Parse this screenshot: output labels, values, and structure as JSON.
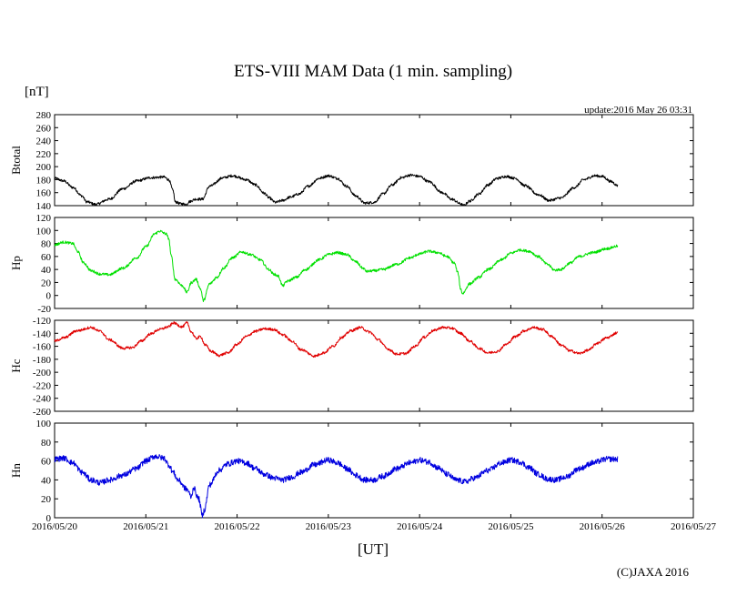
{
  "chart_data": {
    "type": "line",
    "title": "ETS-VIII MAM Data (1 min. sampling)",
    "unit_label": "[nT]",
    "update_text": "update:2016 May 26 03:31",
    "xlabel": "[UT]",
    "copyright": "(C)JAXA 2016",
    "x_axis": {
      "range": [
        0,
        7
      ],
      "ticks": [
        0,
        1,
        2,
        3,
        4,
        5,
        6,
        7
      ],
      "tick_labels": [
        "2016/05/20",
        "2016/05/21",
        "2016/05/22",
        "2016/05/23",
        "2016/05/24",
        "2016/05/25",
        "2016/05/26",
        "2016/05/27"
      ],
      "unit": "days since 2016/05/20 00:00 UT"
    },
    "panels": [
      {
        "id": "btotal",
        "ylabel": "Btotal",
        "color": "#000000",
        "ylim": [
          140,
          280
        ],
        "yticks": [
          140,
          160,
          180,
          200,
          220,
          240,
          260,
          280
        ],
        "ytick_labels": [
          "140",
          "160",
          "180",
          "200",
          "220",
          "240",
          "260",
          "280"
        ],
        "noise": 2,
        "points": [
          [
            0,
            182
          ],
          [
            0.1,
            178
          ],
          [
            0.2,
            168
          ],
          [
            0.3,
            155
          ],
          [
            0.35,
            146
          ],
          [
            0.45,
            142
          ],
          [
            0.6,
            150
          ],
          [
            0.75,
            166
          ],
          [
            0.9,
            178
          ],
          [
            1.05,
            183
          ],
          [
            1.2,
            184
          ],
          [
            1.25,
            180
          ],
          [
            1.3,
            163
          ],
          [
            1.32,
            146
          ],
          [
            1.38,
            143
          ],
          [
            1.45,
            142
          ],
          [
            1.47,
            146
          ],
          [
            1.55,
            150
          ],
          [
            1.62,
            150
          ],
          [
            1.7,
            170
          ],
          [
            1.85,
            183
          ],
          [
            1.95,
            186
          ],
          [
            2.1,
            180
          ],
          [
            2.2,
            172
          ],
          [
            2.3,
            159
          ],
          [
            2.35,
            152
          ],
          [
            2.42,
            145
          ],
          [
            2.5,
            148
          ],
          [
            2.58,
            153
          ],
          [
            2.68,
            158
          ],
          [
            2.78,
            170
          ],
          [
            2.9,
            182
          ],
          [
            3.0,
            186
          ],
          [
            3.1,
            182
          ],
          [
            3.2,
            170
          ],
          [
            3.3,
            155
          ],
          [
            3.4,
            144
          ],
          [
            3.5,
            145
          ],
          [
            3.6,
            158
          ],
          [
            3.7,
            172
          ],
          [
            3.8,
            183
          ],
          [
            3.9,
            187
          ],
          [
            4.0,
            185
          ],
          [
            4.1,
            177
          ],
          [
            4.25,
            160
          ],
          [
            4.35,
            150
          ],
          [
            4.45,
            143
          ],
          [
            4.48,
            140
          ],
          [
            4.55,
            147
          ],
          [
            4.65,
            158
          ],
          [
            4.75,
            172
          ],
          [
            4.85,
            182
          ],
          [
            4.95,
            185
          ],
          [
            5.05,
            182
          ],
          [
            5.15,
            171
          ],
          [
            5.3,
            157
          ],
          [
            5.42,
            148
          ],
          [
            5.55,
            152
          ],
          [
            5.7,
            168
          ],
          [
            5.8,
            180
          ],
          [
            5.92,
            186
          ],
          [
            6.0,
            185
          ],
          [
            6.1,
            177
          ],
          [
            6.17,
            171
          ]
        ]
      },
      {
        "id": "hp",
        "ylabel": "Hp",
        "color": "#00e000",
        "ylim": [
          -20,
          120
        ],
        "yticks": [
          -20,
          0,
          20,
          40,
          60,
          80,
          100,
          120
        ],
        "ytick_labels": [
          "-20",
          "0",
          "20",
          "40",
          "60",
          "80",
          "100",
          "120"
        ],
        "noise": 2,
        "points": [
          [
            0,
            78
          ],
          [
            0.1,
            82
          ],
          [
            0.2,
            80
          ],
          [
            0.25,
            68
          ],
          [
            0.32,
            50
          ],
          [
            0.4,
            38
          ],
          [
            0.5,
            33
          ],
          [
            0.6,
            32
          ],
          [
            0.75,
            42
          ],
          [
            0.9,
            58
          ],
          [
            1.0,
            75
          ],
          [
            1.1,
            95
          ],
          [
            1.15,
            99
          ],
          [
            1.22,
            95
          ],
          [
            1.25,
            88
          ],
          [
            1.28,
            60
          ],
          [
            1.32,
            25
          ],
          [
            1.4,
            15
          ],
          [
            1.45,
            5
          ],
          [
            1.5,
            20
          ],
          [
            1.55,
            25
          ],
          [
            1.6,
            10
          ],
          [
            1.63,
            -8
          ],
          [
            1.7,
            18
          ],
          [
            1.78,
            28
          ],
          [
            1.85,
            42
          ],
          [
            1.95,
            58
          ],
          [
            2.05,
            67
          ],
          [
            2.15,
            63
          ],
          [
            2.25,
            55
          ],
          [
            2.35,
            40
          ],
          [
            2.4,
            33
          ],
          [
            2.45,
            30
          ],
          [
            2.5,
            15
          ],
          [
            2.55,
            22
          ],
          [
            2.65,
            28
          ],
          [
            2.75,
            40
          ],
          [
            2.9,
            55
          ],
          [
            3.0,
            63
          ],
          [
            3.1,
            66
          ],
          [
            3.2,
            63
          ],
          [
            3.3,
            52
          ],
          [
            3.38,
            42
          ],
          [
            3.42,
            37
          ],
          [
            3.5,
            38
          ],
          [
            3.6,
            40
          ],
          [
            3.75,
            48
          ],
          [
            3.9,
            58
          ],
          [
            4.0,
            64
          ],
          [
            4.1,
            68
          ],
          [
            4.2,
            66
          ],
          [
            4.3,
            60
          ],
          [
            4.38,
            50
          ],
          [
            4.42,
            35
          ],
          [
            4.45,
            10
          ],
          [
            4.47,
            3
          ],
          [
            4.55,
            18
          ],
          [
            4.65,
            28
          ],
          [
            4.75,
            40
          ],
          [
            4.9,
            55
          ],
          [
            5.0,
            65
          ],
          [
            5.1,
            70
          ],
          [
            5.2,
            68
          ],
          [
            5.3,
            60
          ],
          [
            5.4,
            48
          ],
          [
            5.48,
            39
          ],
          [
            5.55,
            40
          ],
          [
            5.65,
            50
          ],
          [
            5.75,
            60
          ],
          [
            5.9,
            66
          ],
          [
            6.05,
            72
          ],
          [
            6.17,
            76
          ]
        ]
      },
      {
        "id": "hc",
        "ylabel": "Hc",
        "color": "#e00000",
        "ylim": [
          -260,
          -120
        ],
        "yticks": [
          -260,
          -240,
          -220,
          -200,
          -180,
          -160,
          -140,
          -120
        ],
        "ytick_labels": [
          "-260",
          "-240",
          "-220",
          "-200",
          "-180",
          "-160",
          "-140",
          "-120"
        ],
        "noise": 2,
        "points": [
          [
            0,
            -152
          ],
          [
            0.1,
            -147
          ],
          [
            0.25,
            -136
          ],
          [
            0.4,
            -131
          ],
          [
            0.5,
            -137
          ],
          [
            0.6,
            -150
          ],
          [
            0.75,
            -163
          ],
          [
            0.85,
            -162
          ],
          [
            0.95,
            -152
          ],
          [
            1.05,
            -141
          ],
          [
            1.15,
            -134
          ],
          [
            1.25,
            -130
          ],
          [
            1.3,
            -124
          ],
          [
            1.4,
            -130
          ],
          [
            1.45,
            -124
          ],
          [
            1.5,
            -138
          ],
          [
            1.55,
            -148
          ],
          [
            1.6,
            -145
          ],
          [
            1.65,
            -158
          ],
          [
            1.72,
            -168
          ],
          [
            1.8,
            -174
          ],
          [
            1.9,
            -170
          ],
          [
            2.0,
            -157
          ],
          [
            2.1,
            -145
          ],
          [
            2.2,
            -137
          ],
          [
            2.3,
            -133
          ],
          [
            2.4,
            -134
          ],
          [
            2.5,
            -142
          ],
          [
            2.6,
            -152
          ],
          [
            2.7,
            -165
          ],
          [
            2.85,
            -175
          ],
          [
            2.95,
            -170
          ],
          [
            3.05,
            -160
          ],
          [
            3.15,
            -146
          ],
          [
            3.25,
            -136
          ],
          [
            3.35,
            -131
          ],
          [
            3.45,
            -138
          ],
          [
            3.55,
            -150
          ],
          [
            3.65,
            -164
          ],
          [
            3.75,
            -172
          ],
          [
            3.85,
            -171
          ],
          [
            3.95,
            -160
          ],
          [
            4.05,
            -146
          ],
          [
            4.15,
            -136
          ],
          [
            4.25,
            -131
          ],
          [
            4.35,
            -132
          ],
          [
            4.45,
            -140
          ],
          [
            4.55,
            -152
          ],
          [
            4.65,
            -163
          ],
          [
            4.75,
            -170
          ],
          [
            4.85,
            -168
          ],
          [
            4.95,
            -157
          ],
          [
            5.05,
            -145
          ],
          [
            5.15,
            -136
          ],
          [
            5.25,
            -131
          ],
          [
            5.35,
            -134
          ],
          [
            5.45,
            -145
          ],
          [
            5.55,
            -158
          ],
          [
            5.65,
            -167
          ],
          [
            5.75,
            -171
          ],
          [
            5.85,
            -166
          ],
          [
            5.95,
            -155
          ],
          [
            6.05,
            -147
          ],
          [
            6.17,
            -139
          ]
        ]
      },
      {
        "id": "hn",
        "ylabel": "Hn",
        "color": "#0000e0",
        "ylim": [
          0,
          100
        ],
        "yticks": [
          0,
          20,
          40,
          60,
          80,
          100
        ],
        "ytick_labels": [
          "0",
          "20",
          "40",
          "60",
          "80",
          "100"
        ],
        "noise": 3,
        "points": [
          [
            0,
            62
          ],
          [
            0.1,
            63
          ],
          [
            0.2,
            58
          ],
          [
            0.3,
            48
          ],
          [
            0.4,
            40
          ],
          [
            0.5,
            37
          ],
          [
            0.6,
            40
          ],
          [
            0.75,
            45
          ],
          [
            0.9,
            52
          ],
          [
            1.0,
            60
          ],
          [
            1.1,
            65
          ],
          [
            1.2,
            63
          ],
          [
            1.25,
            56
          ],
          [
            1.3,
            48
          ],
          [
            1.35,
            40
          ],
          [
            1.45,
            30
          ],
          [
            1.5,
            22
          ],
          [
            1.52,
            32
          ],
          [
            1.58,
            20
          ],
          [
            1.62,
            2
          ],
          [
            1.64,
            8
          ],
          [
            1.7,
            35
          ],
          [
            1.8,
            50
          ],
          [
            1.9,
            57
          ],
          [
            2.0,
            60
          ],
          [
            2.1,
            58
          ],
          [
            2.2,
            52
          ],
          [
            2.3,
            46
          ],
          [
            2.4,
            42
          ],
          [
            2.5,
            40
          ],
          [
            2.6,
            43
          ],
          [
            2.7,
            48
          ],
          [
            2.85,
            56
          ],
          [
            3.0,
            61
          ],
          [
            3.1,
            58
          ],
          [
            3.2,
            52
          ],
          [
            3.3,
            45
          ],
          [
            3.4,
            40
          ],
          [
            3.5,
            40
          ],
          [
            3.6,
            44
          ],
          [
            3.75,
            52
          ],
          [
            3.9,
            58
          ],
          [
            4.0,
            61
          ],
          [
            4.1,
            59
          ],
          [
            4.2,
            53
          ],
          [
            4.3,
            46
          ],
          [
            4.4,
            40
          ],
          [
            4.5,
            38
          ],
          [
            4.6,
            42
          ],
          [
            4.75,
            50
          ],
          [
            4.9,
            58
          ],
          [
            5.0,
            61
          ],
          [
            5.1,
            59
          ],
          [
            5.2,
            53
          ],
          [
            5.3,
            46
          ],
          [
            5.4,
            41
          ],
          [
            5.5,
            40
          ],
          [
            5.6,
            43
          ],
          [
            5.75,
            52
          ],
          [
            5.9,
            58
          ],
          [
            6.05,
            62
          ],
          [
            6.17,
            62
          ]
        ]
      }
    ]
  }
}
